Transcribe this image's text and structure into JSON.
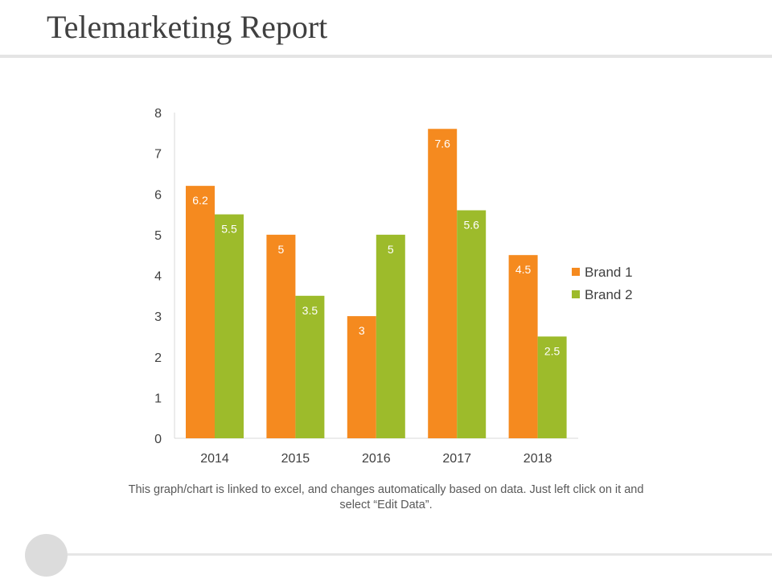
{
  "slide": {
    "title": "Telemarketing Report",
    "caption": "This graph/chart is linked to excel, and changes automatically based on data. Just left click on it and select “Edit Data”."
  },
  "colors": {
    "brand1": "#f58a1f",
    "brand2": "#9dbb2b",
    "axis": "#d9d9d9",
    "tick_text": "#404040",
    "label_text": "#ffffff"
  },
  "chart_data": {
    "type": "bar",
    "title": "",
    "xlabel": "",
    "ylabel": "",
    "categories": [
      "2014",
      "2015",
      "2016",
      "2017",
      "2018"
    ],
    "series": [
      {
        "name": "Brand 1",
        "values": [
          6.2,
          5,
          3,
          7.6,
          4.5
        ]
      },
      {
        "name": "Brand 2",
        "values": [
          5.5,
          3.5,
          5,
          5.6,
          2.5
        ]
      }
    ],
    "ylim": [
      0,
      8
    ],
    "yticks": [
      0,
      1,
      2,
      3,
      4,
      5,
      6,
      7,
      8
    ],
    "grid": false,
    "legend": "right"
  }
}
